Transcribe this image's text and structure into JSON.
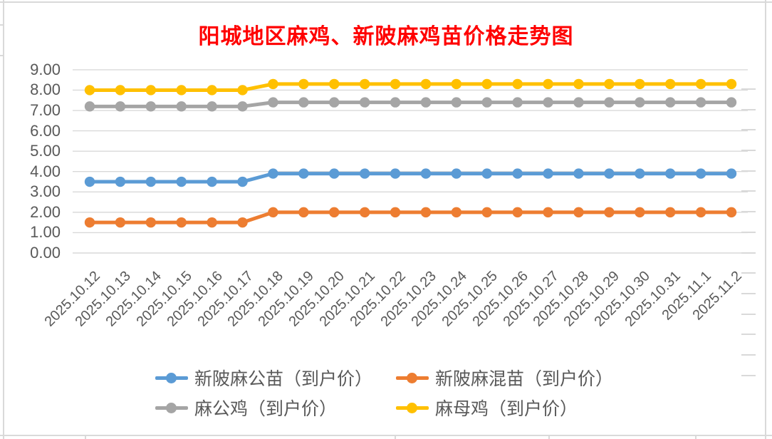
{
  "title": {
    "text": "阳城地区麻鸡、新陂麻鸡苗价格走势图",
    "color": "#FF0000"
  },
  "chart_data": {
    "type": "line",
    "title": "阳城地区麻鸡、新陂麻鸡苗价格走势图",
    "categories": [
      "2025.10.12",
      "2025.10.13",
      "2025.10.14",
      "2025.10.15",
      "2025.10.16",
      "2025.10.17",
      "2025.10.18",
      "2025.10.19",
      "2025.10.20",
      "2025.10.21",
      "2025.10.22",
      "2025.10.23",
      "2025.10.24",
      "2025.10.25",
      "2025.10.26",
      "2025.10.27",
      "2025.10.28",
      "2025.10.29",
      "2025.10.30",
      "2025.10.31",
      "2025.11.1",
      "2025.11.2"
    ],
    "series": [
      {
        "name": "新陂麻公苗（到户价）",
        "color": "#5B9BD5",
        "values": [
          3.5,
          3.5,
          3.5,
          3.5,
          3.5,
          3.5,
          3.9,
          3.9,
          3.9,
          3.9,
          3.9,
          3.9,
          3.9,
          3.9,
          3.9,
          3.9,
          3.9,
          3.9,
          3.9,
          3.9,
          3.9,
          3.9
        ]
      },
      {
        "name": "新陂麻混苗（到户价）",
        "color": "#ED7D31",
        "values": [
          1.5,
          1.5,
          1.5,
          1.5,
          1.5,
          1.5,
          2.0,
          2.0,
          2.0,
          2.0,
          2.0,
          2.0,
          2.0,
          2.0,
          2.0,
          2.0,
          2.0,
          2.0,
          2.0,
          2.0,
          2.0,
          2.0
        ]
      },
      {
        "name": "麻公鸡（到户价）",
        "color": "#A5A5A5",
        "values": [
          7.2,
          7.2,
          7.2,
          7.2,
          7.2,
          7.2,
          7.4,
          7.4,
          7.4,
          7.4,
          7.4,
          7.4,
          7.4,
          7.4,
          7.4,
          7.4,
          7.4,
          7.4,
          7.4,
          7.4,
          7.4,
          7.4
        ]
      },
      {
        "name": "麻母鸡（到户价）",
        "color": "#FFC000",
        "values": [
          8.0,
          8.0,
          8.0,
          8.0,
          8.0,
          8.0,
          8.3,
          8.3,
          8.3,
          8.3,
          8.3,
          8.3,
          8.3,
          8.3,
          8.3,
          8.3,
          8.3,
          8.3,
          8.3,
          8.3,
          8.3,
          8.3
        ]
      }
    ],
    "y_ticks": [
      "9.00",
      "8.00",
      "7.00",
      "6.00",
      "5.00",
      "4.00",
      "3.00",
      "2.00",
      "1.00",
      "0.00"
    ],
    "ylim": [
      0,
      9
    ],
    "grid": true,
    "legend_position": "bottom",
    "marker": "circle"
  },
  "colors": {
    "axis_label": "#595959",
    "gridline": "#D9D9D9",
    "spreadsheet_line": "#D9D9D9",
    "legend_text": "#595959"
  }
}
